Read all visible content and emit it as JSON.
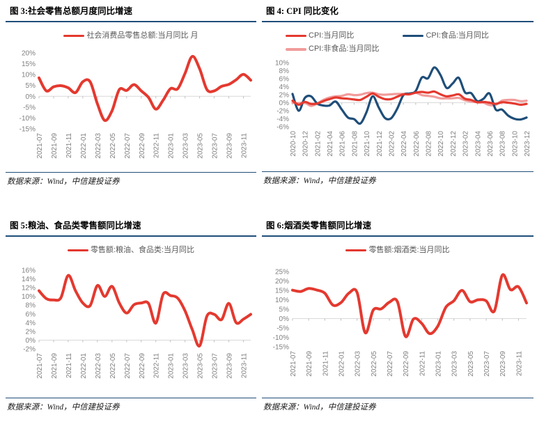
{
  "source_note": "数据来源：Wind，中信建投证券",
  "colors": {
    "accent_red": "#E4392F",
    "accent_navy": "#1F4E79",
    "accent_pink": "#F19C9B",
    "rule_blue": "#1F4E79",
    "axis_line": "#D9D9D9",
    "axis_text": "#7F7F7F",
    "legend_text": "#595959"
  },
  "chart_data": [
    {
      "id": "fig3",
      "type": "line",
      "title": "图 3:社会零售总额月度同比增速",
      "ylabel_format": "percent",
      "ylim": [
        -15,
        20
      ],
      "ytick_step": 5,
      "x_tick_every": 2,
      "grid": false,
      "legend_position": "top",
      "x": [
        "2021-07",
        "2021-08",
        "2021-09",
        "2021-10",
        "2021-11",
        "2021-12",
        "2022-01",
        "2022-02",
        "2022-03",
        "2022-04",
        "2022-05",
        "2022-06",
        "2022-07",
        "2022-08",
        "2022-09",
        "2022-10",
        "2022-11",
        "2022-12",
        "2023-01",
        "2023-02",
        "2023-03",
        "2023-04",
        "2023-05",
        "2023-06",
        "2023-07",
        "2023-08",
        "2023-09",
        "2023-10",
        "2023-11",
        "2023-12"
      ],
      "series": [
        {
          "name": "社会消费品零售总额:当月同比 月",
          "color": "#E4392F",
          "values": [
            8.5,
            2.5,
            4.4,
            4.9,
            3.9,
            1.7,
            6.7,
            6.7,
            -3.5,
            -11.1,
            -6.7,
            3.1,
            2.7,
            5.4,
            2.5,
            -0.5,
            -5.9,
            -1.8,
            3.5,
            3.5,
            10.6,
            18.4,
            12.7,
            3.1,
            2.5,
            4.6,
            5.5,
            7.6,
            10.1,
            7.4
          ]
        }
      ]
    },
    {
      "id": "fig4",
      "type": "line",
      "title": "图 4: CPI 同比变化",
      "ylabel_format": "percent",
      "ylim": [
        -6,
        10
      ],
      "ytick_step": 2,
      "x_tick_every": 2,
      "grid": false,
      "legend_position": "top",
      "x": [
        "2020-10",
        "2020-11",
        "2020-12",
        "2021-01",
        "2021-02",
        "2021-03",
        "2021-04",
        "2021-05",
        "2021-06",
        "2021-07",
        "2021-08",
        "2021-09",
        "2021-10",
        "2021-11",
        "2021-12",
        "2022-01",
        "2022-02",
        "2022-03",
        "2022-04",
        "2022-05",
        "2022-06",
        "2022-07",
        "2022-08",
        "2022-09",
        "2022-10",
        "2022-11",
        "2022-12",
        "2023-01",
        "2023-02",
        "2023-03",
        "2023-04",
        "2023-05",
        "2023-06",
        "2023-07",
        "2023-08",
        "2023-09",
        "2023-10",
        "2023-11",
        "2023-12"
      ],
      "series": [
        {
          "name": "CPI:当月同比",
          "color": "#E4392F",
          "values": [
            0.5,
            -0.5,
            0.2,
            -0.3,
            -0.2,
            0.4,
            0.9,
            1.3,
            1.1,
            1.0,
            0.8,
            0.7,
            1.5,
            2.3,
            1.5,
            0.9,
            0.9,
            1.5,
            2.1,
            2.1,
            2.5,
            2.7,
            2.5,
            2.8,
            2.1,
            1.6,
            1.8,
            2.1,
            1.0,
            0.7,
            0.1,
            0.2,
            0.0,
            -0.3,
            0.1,
            0.0,
            -0.2,
            -0.5,
            -0.3
          ]
        },
        {
          "name": "CPI:食品:当月同比",
          "color": "#1F4E79",
          "values": [
            2.2,
            -2.0,
            1.2,
            1.6,
            -0.2,
            -0.7,
            -0.7,
            0.3,
            -1.7,
            -3.7,
            -4.1,
            -5.2,
            -2.4,
            1.6,
            -1.2,
            -3.8,
            -3.9,
            -1.5,
            1.9,
            2.3,
            2.9,
            6.3,
            6.1,
            8.8,
            7.0,
            3.7,
            4.8,
            6.2,
            2.6,
            2.4,
            0.4,
            1.0,
            2.3,
            -1.7,
            -1.7,
            -3.2,
            -4.0,
            -4.2,
            -3.7
          ]
        },
        {
          "name": "CPI:非食品:当月同比",
          "color": "#F19C9B",
          "values": [
            0.0,
            -0.1,
            0.0,
            -0.8,
            -0.2,
            0.7,
            1.3,
            1.6,
            1.7,
            2.1,
            1.9,
            2.0,
            2.4,
            2.5,
            2.1,
            2.0,
            2.1,
            2.2,
            2.2,
            2.1,
            2.5,
            1.9,
            1.7,
            1.5,
            1.1,
            1.1,
            1.1,
            1.2,
            0.6,
            0.3,
            0.1,
            0.0,
            -0.6,
            -0.5,
            0.5,
            0.7,
            0.7,
            0.4,
            0.5
          ]
        }
      ]
    },
    {
      "id": "fig5",
      "type": "line",
      "title": "图 5:粮油、食品类零售额同比增速",
      "ylabel_format": "percent",
      "ylim": [
        -2,
        16
      ],
      "ytick_step": 2,
      "x_tick_every": 2,
      "grid": false,
      "legend_position": "top",
      "x": [
        "2021-07",
        "2021-08",
        "2021-09",
        "2021-10",
        "2021-11",
        "2021-12",
        "2022-01",
        "2022-02",
        "2022-03",
        "2022-04",
        "2022-05",
        "2022-06",
        "2022-07",
        "2022-08",
        "2022-09",
        "2022-10",
        "2022-11",
        "2022-12",
        "2023-01",
        "2023-02",
        "2023-03",
        "2023-04",
        "2023-05",
        "2023-06",
        "2023-07",
        "2023-08",
        "2023-09",
        "2023-10",
        "2023-11",
        "2023-12"
      ],
      "series": [
        {
          "name": "零售额:粮油、食品类:当月同比",
          "color": "#E4392F",
          "values": [
            11.3,
            9.5,
            9.2,
            9.7,
            14.8,
            11.3,
            8.5,
            7.9,
            12.5,
            10.0,
            12.3,
            8.5,
            6.2,
            8.1,
            8.5,
            8.4,
            3.9,
            10.5,
            10.2,
            9.6,
            6.7,
            2.4,
            -1.3,
            5.5,
            5.9,
            4.7,
            8.4,
            4.0,
            4.8,
            5.9
          ]
        }
      ]
    },
    {
      "id": "fig6",
      "type": "line",
      "title": "图 6:烟酒类零售额同比增速",
      "ylabel_format": "percent",
      "ylim": [
        -15,
        25
      ],
      "ytick_step": 5,
      "x_tick_every": 2,
      "grid": false,
      "legend_position": "top",
      "x": [
        "2021-07",
        "2021-08",
        "2021-09",
        "2021-10",
        "2021-11",
        "2021-12",
        "2022-01",
        "2022-02",
        "2022-03",
        "2022-04",
        "2022-05",
        "2022-06",
        "2022-07",
        "2022-08",
        "2022-09",
        "2022-10",
        "2022-11",
        "2022-12",
        "2023-01",
        "2023-02",
        "2023-03",
        "2023-04",
        "2023-05",
        "2023-06",
        "2023-07",
        "2023-08",
        "2023-09",
        "2023-10",
        "2023-11",
        "2023-12"
      ],
      "series": [
        {
          "name": "零售额:烟酒类:当月同比",
          "color": "#E4392F",
          "values": [
            15.1,
            14.4,
            16.0,
            15.2,
            13.5,
            7.2,
            8.5,
            13.6,
            13.9,
            -7.5,
            4.5,
            5.2,
            8.7,
            9.0,
            -9.5,
            -0.2,
            -2.5,
            -8.0,
            -4.0,
            6.0,
            9.5,
            15.0,
            9.0,
            10.0,
            9.4,
            4.0,
            23.1,
            15.4,
            16.9,
            8.3
          ]
        }
      ]
    }
  ]
}
